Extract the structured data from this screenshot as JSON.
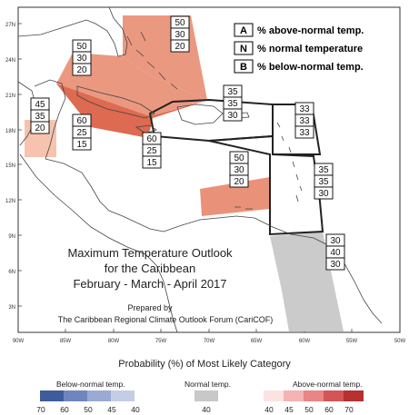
{
  "axes": {
    "lat_ticks": [
      "27N",
      "24N",
      "21N",
      "18N",
      "15N",
      "12N",
      "9N",
      "6N",
      "3N"
    ],
    "lon_ticks": [
      "90W",
      "85W",
      "80W",
      "75W",
      "70W",
      "65W",
      "60W",
      "55W",
      "50W"
    ]
  },
  "legend": {
    "rows": [
      {
        "key": "A",
        "text": "% above-normal temp."
      },
      {
        "key": "N",
        "text": "% normal temperature"
      },
      {
        "key": "B",
        "text": "% below-normal temp."
      }
    ]
  },
  "regions": [
    {
      "id": "bahamas-north",
      "A": "50",
      "N": "30",
      "B": "20"
    },
    {
      "id": "bahamas-west",
      "A": "50",
      "N": "30",
      "B": "20"
    },
    {
      "id": "belize",
      "A": "45",
      "N": "35",
      "B": "20"
    },
    {
      "id": "cuba-jamaica",
      "A": "60",
      "N": "25",
      "B": "15"
    },
    {
      "id": "jamaica-south",
      "A": "60",
      "N": "25",
      "B": "15"
    },
    {
      "id": "hispaniola",
      "A": "35",
      "N": "35",
      "B": "30"
    },
    {
      "id": "leeward",
      "A": "33",
      "N": "33",
      "B": "33"
    },
    {
      "id": "central-caribbean",
      "A": "50",
      "N": "30",
      "B": "20"
    },
    {
      "id": "windward",
      "A": "35",
      "N": "35",
      "B": "30"
    },
    {
      "id": "guianas",
      "A": "30",
      "N": "40",
      "B": "30"
    }
  ],
  "title": {
    "line1": "Maximum Temperature Outlook",
    "line2": "for the Caribbean",
    "line3": "February - March - April 2017",
    "prepared": "Prepared by",
    "forum": "The Caribbean Regional Climate Outlook Forum (CariCOF)"
  },
  "scale": {
    "title": "Probability (%) of Most Likely Category",
    "below_title": "Below-normal temp.",
    "normal_title": "Normal temp.",
    "above_title": "Above-normal temp.",
    "below_colors": [
      "#3e5c9c",
      "#6e86bd",
      "#9aaad2",
      "#c3cde6"
    ],
    "below_values": [
      "70",
      "60",
      "50",
      "45",
      "40"
    ],
    "normal_color": "#c8c8c8",
    "normal_value": "40",
    "above_colors": [
      "#fde2e2",
      "#f6b3b3",
      "#e98585",
      "#d45555",
      "#b83030"
    ],
    "above_values": [
      "40",
      "45",
      "50",
      "60",
      "70"
    ]
  },
  "colors": {
    "above_45": "#f6b8a0",
    "above_50": "#e8866a",
    "above_60": "#d95a3e",
    "normal_40": "#c8c8c8",
    "coast": "#444444",
    "region_border": "#222222"
  }
}
